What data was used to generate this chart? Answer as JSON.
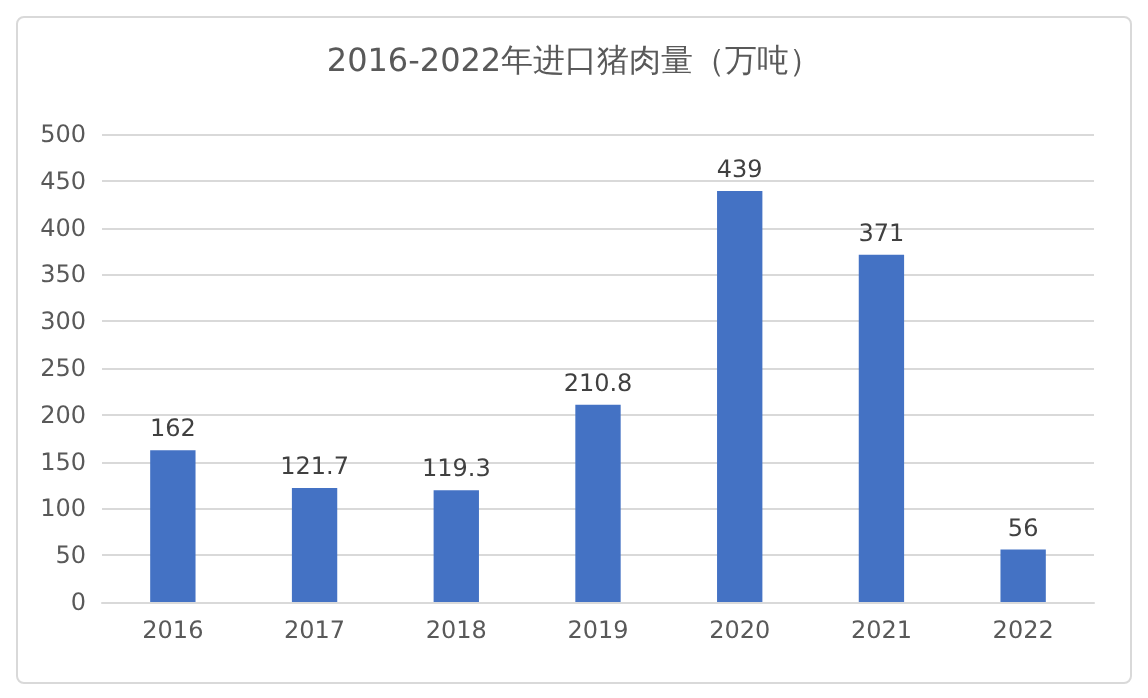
{
  "chart_data": {
    "type": "bar",
    "title": "2016-2022年进口猪肉量（万吨）",
    "categories": [
      "2016",
      "2017",
      "2018",
      "2019",
      "2020",
      "2021",
      "2022"
    ],
    "values": [
      162,
      121.7,
      119.3,
      210.8,
      439,
      371,
      56
    ],
    "color": "#4472c4",
    "ylim": [
      0,
      500
    ],
    "yticks": [
      0,
      50,
      100,
      150,
      200,
      250,
      300,
      350,
      400,
      450,
      500
    ],
    "grid": "y",
    "data_labels": true
  }
}
